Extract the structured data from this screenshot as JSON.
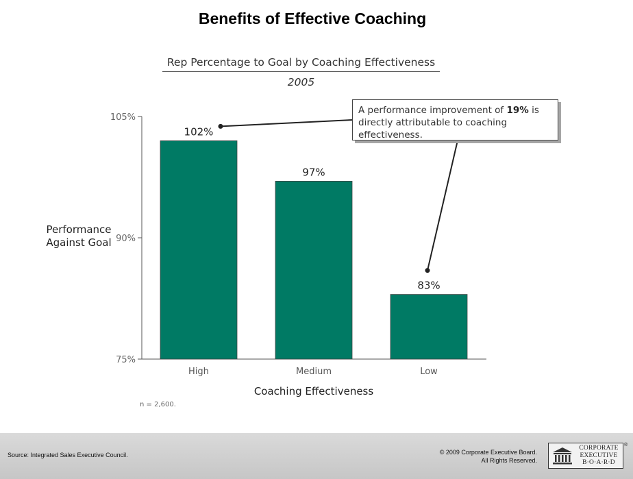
{
  "page": {
    "title": "Benefits of Effective Coaching"
  },
  "chart_data": {
    "type": "bar",
    "title": "Rep Percentage to Goal by Coaching Effectiveness",
    "subtitle": "2005",
    "xlabel": "Coaching Effectiveness",
    "ylabel_lines": [
      "Performance",
      "Against Goal"
    ],
    "categories": [
      "High",
      "Medium",
      "Low"
    ],
    "values": [
      102,
      97,
      83
    ],
    "value_labels": [
      "102%",
      "97%",
      "83%"
    ],
    "ylim": [
      75,
      105
    ],
    "yticks": [
      75,
      90,
      105
    ],
    "ytick_labels": [
      "75%",
      "90%",
      "105%"
    ],
    "bar_color": "#007a64",
    "grid": false,
    "note": "n = 2,600.",
    "callout": {
      "text_before": "A performance improvement of ",
      "highlight": "19%",
      "text_after": " is directly attributable to coaching effectiveness.",
      "points_to": [
        "High",
        "Low"
      ]
    }
  },
  "footer": {
    "source": "Source: Integrated Sales Executive Council.",
    "copyright": "© 2009 Corporate Executive Board.",
    "rights": "All Rights Reserved.",
    "logo_lines": [
      "CORPORATE",
      "EXECUTIVE",
      "B·O·A·R·D"
    ],
    "logo_mark": "®"
  }
}
